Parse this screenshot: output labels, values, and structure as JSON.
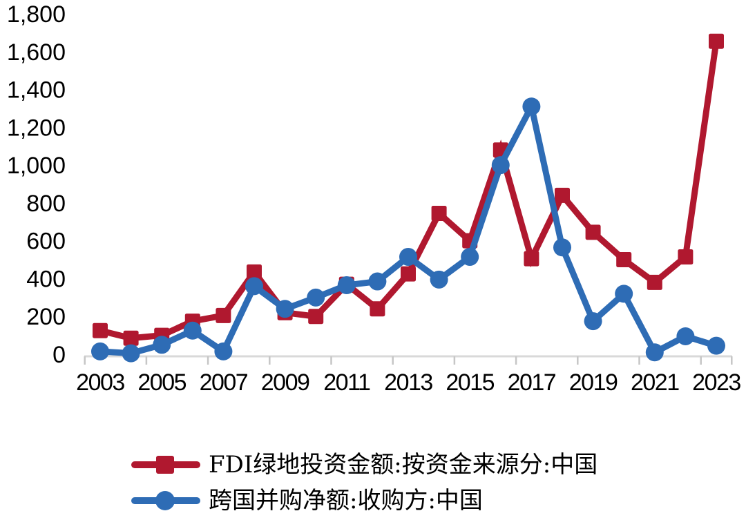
{
  "chart_data": {
    "type": "line",
    "x": [
      2003,
      2004,
      2005,
      2006,
      2007,
      2008,
      2009,
      2010,
      2011,
      2012,
      2013,
      2014,
      2015,
      2016,
      2017,
      2018,
      2019,
      2020,
      2021,
      2022,
      2023
    ],
    "series": [
      {
        "name": "FDI绿地投资金额:按资金来源分:中国",
        "color": "#B0182F",
        "marker": "square",
        "values": [
          125,
          85,
          100,
          175,
          205,
          435,
          220,
          200,
          370,
          240,
          425,
          745,
          600,
          1080,
          505,
          840,
          645,
          500,
          380,
          515,
          1655
        ]
      },
      {
        "name": "跨国并购净额:收购方:中国",
        "color": "#2E6CB5",
        "marker": "circle",
        "values": [
          15,
          5,
          50,
          125,
          15,
          360,
          240,
          300,
          365,
          385,
          515,
          395,
          515,
          1000,
          1310,
          565,
          175,
          320,
          10,
          95,
          45
        ]
      }
    ],
    "title": "",
    "xlabel": "",
    "ylabel": "",
    "ylim": [
      0,
      1800
    ],
    "ytick_step": 200,
    "ytick_labels": [
      "0",
      "200",
      "400",
      "600",
      "800",
      "1,000",
      "1,200",
      "1,400",
      "1,600",
      "1,800"
    ],
    "xtick_labels": [
      "2003",
      "2005",
      "2007",
      "2009",
      "2011",
      "2013",
      "2015",
      "2017",
      "2019",
      "2021",
      "2023"
    ],
    "legend_position": "bottom",
    "grid": false,
    "axis_color": "#D9D9D9",
    "tick_color": "#C6C6C6",
    "text_color": "#000000"
  }
}
